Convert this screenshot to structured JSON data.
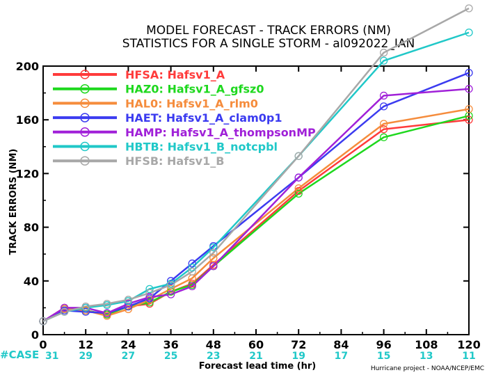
{
  "chart_data": {
    "type": "line",
    "title": "MODEL FORECAST - TRACK ERRORS (NM)",
    "subtitle": "STATISTICS FOR A SINGLE STORM - al092022_IAN",
    "xlabel": "Forecast lead time (hr)",
    "ylabel": "TRACK ERRORS (NM)",
    "xlim": [
      0,
      120
    ],
    "ylim": [
      0,
      200
    ],
    "x_ticks": [
      0,
      12,
      24,
      36,
      48,
      60,
      72,
      84,
      96,
      108,
      120
    ],
    "y_ticks": [
      0,
      40,
      80,
      120,
      160,
      200
    ],
    "grid": false,
    "legend_position": "top-left",
    "case_label": "#CASE",
    "case_counts": [
      31,
      29,
      27,
      25,
      23,
      21,
      19,
      17,
      15,
      13,
      11
    ],
    "credit": "Hurricane project - NOAA/NCEP/EMC",
    "x": [
      0,
      6,
      12,
      18,
      24,
      30,
      36,
      42,
      48,
      72,
      96,
      120
    ],
    "series": [
      {
        "name": "HFSA: Hafsv1_A",
        "color": "#ff3b3b",
        "values": [
          10,
          20,
          18,
          15,
          21,
          23,
          32,
          38,
          52,
          107,
          153,
          160
        ]
      },
      {
        "name": "HAZ0: Hafsv1_A_gfsz0",
        "color": "#1ed81e",
        "values": [
          10,
          19,
          18,
          15,
          21,
          24,
          32,
          37,
          51,
          105,
          147,
          163
        ]
      },
      {
        "name": "HAL0: Hafsv1_A_rlm0",
        "color": "#f58c3c",
        "values": [
          10,
          19,
          18,
          14,
          19,
          26,
          34,
          42,
          57,
          109,
          157,
          168
        ]
      },
      {
        "name": "HAET: Hafsv1_A_clam0p1",
        "color": "#3b3bf0",
        "values": [
          10,
          18,
          17,
          16,
          21,
          27,
          40,
          53,
          66,
          117,
          170,
          195
        ]
      },
      {
        "name": "HAMP: Hafsv1_A_thompsonMP",
        "color": "#a020d8",
        "values": [
          10,
          20,
          20,
          16,
          23,
          28,
          30,
          36,
          51,
          117,
          178,
          183
        ]
      },
      {
        "name": "HBTB: Hafsv1_B_notcpbl",
        "color": "#20c8c8",
        "values": [
          10,
          17,
          20,
          22,
          25,
          34,
          38,
          50,
          65,
          133,
          204,
          225
        ]
      },
      {
        "name": "HFSB: Hafsv1_B",
        "color": "#a8a8a8",
        "values": [
          10,
          17,
          21,
          23,
          26,
          31,
          37,
          47,
          61,
          133,
          210,
          243
        ]
      }
    ]
  }
}
